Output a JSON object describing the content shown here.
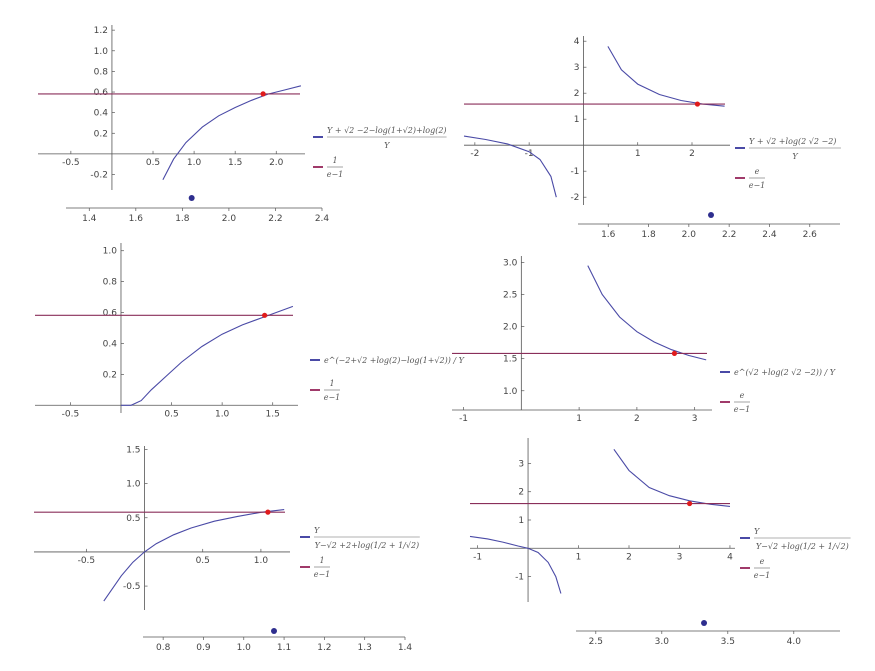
{
  "chart_data": [
    {
      "type": "line",
      "xlim": [
        -0.9,
        2.35
      ],
      "ylim": [
        -0.35,
        1.25
      ],
      "xticks": [
        "-0.5",
        "0.5",
        "1.0",
        "1.5",
        "2.0"
      ],
      "yticks": [
        "-0.2",
        "0.2",
        "0.4",
        "0.6",
        "0.8",
        "1.0",
        "1.2"
      ],
      "series": [
        {
          "kind": "curve",
          "x": [
            0.62,
            0.75,
            0.9,
            1.1,
            1.3,
            1.5,
            1.7,
            1.9,
            2.1,
            2.3
          ],
          "y": [
            -0.25,
            -0.05,
            0.11,
            0.26,
            0.37,
            0.45,
            0.52,
            0.58,
            0.62,
            0.66
          ]
        },
        {
          "kind": "hline",
          "y": 0.582
        }
      ],
      "intersection": {
        "x": 1.84,
        "y": 0.582
      },
      "legend": {
        "curve": "Y+√2 −2−log(1+√2)+log(2) / Y",
        "hline": "1 / e−1"
      },
      "secondary_axis": {
        "xlim": [
          1.3,
          2.4
        ],
        "ticks": [
          "1.4",
          "1.6",
          "1.8",
          "2.0",
          "2.2",
          "2.4"
        ],
        "dot": 1.84
      }
    },
    {
      "type": "line",
      "xlim": [
        -2.2,
        2.7
      ],
      "ylim": [
        -2.3,
        4.2
      ],
      "xticks": [
        "-2",
        "-1",
        "1",
        "2"
      ],
      "yticks": [
        "-2",
        "-1",
        "1",
        "2",
        "3",
        "4"
      ],
      "series": [
        {
          "kind": "curve",
          "x": [
            -2.2,
            -1.8,
            -1.4,
            -1.0,
            -0.8,
            -0.6,
            -0.5
          ],
          "y": [
            0.35,
            0.22,
            0.05,
            -0.25,
            -0.55,
            -1.2,
            -2.0
          ]
        },
        {
          "kind": "curve",
          "x": [
            0.45,
            0.7,
            1.0,
            1.4,
            1.8,
            2.2,
            2.6
          ],
          "y": [
            3.8,
            2.9,
            2.35,
            1.95,
            1.72,
            1.58,
            1.5
          ]
        },
        {
          "kind": "hline",
          "y": 1.582
        }
      ],
      "intersection": {
        "x": 2.1,
        "y": 1.582
      },
      "legend": {
        "curve": "Y+√2 +log(2 √2 −2) / Y",
        "hline": "e / e−1"
      },
      "secondary_axis": {
        "xlim": [
          1.45,
          2.75
        ],
        "ticks": [
          "1.6",
          "1.8",
          "2.0",
          "2.2",
          "2.4",
          "2.6"
        ],
        "dot": 2.11
      }
    },
    {
      "type": "line",
      "xlim": [
        -0.85,
        1.75
      ],
      "ylim": [
        -0.05,
        1.05
      ],
      "xticks": [
        "-0.5",
        "0.5",
        "1.0",
        "1.5"
      ],
      "yticks": [
        "0.2",
        "0.4",
        "0.6",
        "0.8",
        "1.0"
      ],
      "series": [
        {
          "kind": "curve",
          "x": [
            0.0,
            0.1,
            0.2,
            0.3,
            0.45,
            0.6,
            0.8,
            1.0,
            1.2,
            1.45,
            1.7
          ],
          "y": [
            0.0,
            0.0,
            0.03,
            0.1,
            0.19,
            0.28,
            0.38,
            0.46,
            0.52,
            0.58,
            0.64
          ]
        },
        {
          "kind": "hline",
          "y": 0.582
        }
      ],
      "intersection": {
        "x": 1.42,
        "y": 0.582
      },
      "legend": {
        "curve": "e^((−2+√2 +log(2)−log(1+√2)) / Y)",
        "hline": "1 / e−1"
      }
    },
    {
      "type": "line",
      "xlim": [
        -1.2,
        3.3
      ],
      "ylim": [
        0.7,
        3.1
      ],
      "xticks": [
        "-1",
        "1",
        "2",
        "3"
      ],
      "yticks": [
        "1.0",
        "1.5",
        "2.0",
        "2.5",
        "3.0"
      ],
      "series": [
        {
          "kind": "curve",
          "x": [
            1.15,
            1.4,
            1.7,
            2.0,
            2.3,
            2.6,
            2.9,
            3.2
          ],
          "y": [
            2.95,
            2.5,
            2.15,
            1.92,
            1.76,
            1.64,
            1.55,
            1.48
          ]
        },
        {
          "kind": "hline",
          "y": 1.582
        }
      ],
      "intersection": {
        "x": 2.65,
        "y": 1.582
      },
      "legend": {
        "curve": "e^((√2 +log(2 √2 −2)) / Y)",
        "hline": "e / e−1"
      }
    },
    {
      "type": "line",
      "xlim": [
        -0.95,
        1.25
      ],
      "ylim": [
        -0.85,
        1.55
      ],
      "xticks": [
        "-0.5",
        "0.5",
        "1.0"
      ],
      "yticks": [
        "-0.5",
        "0.5",
        "1.0",
        "1.5"
      ],
      "series": [
        {
          "kind": "curve",
          "x": [
            -0.35,
            -0.2,
            -0.1,
            0.0,
            0.1,
            0.25,
            0.4,
            0.6,
            0.8,
            1.0,
            1.2
          ],
          "y": [
            -0.72,
            -0.35,
            -0.15,
            0.0,
            0.12,
            0.25,
            0.35,
            0.45,
            0.52,
            0.58,
            0.62
          ]
        },
        {
          "kind": "hline",
          "y": 0.582
        }
      ],
      "intersection": {
        "x": 1.06,
        "y": 0.582
      },
      "legend": {
        "curve": "Y / Y−√2 +2+log(1/2+1/√2)",
        "hline": "1 / e−1"
      },
      "secondary_axis": {
        "xlim": [
          0.75,
          1.4
        ],
        "ticks": [
          "0.8",
          "0.9",
          "1.0",
          "1.1",
          "1.2",
          "1.3",
          "1.4"
        ],
        "dot": 1.075
      }
    },
    {
      "type": "line",
      "xlim": [
        -1.15,
        4.1
      ],
      "ylim": [
        -1.9,
        3.9
      ],
      "xticks": [
        "-1",
        "1",
        "2",
        "3",
        "4"
      ],
      "yticks": [
        "-1",
        "1",
        "2",
        "3"
      ],
      "series": [
        {
          "kind": "curve",
          "x": [
            -1.15,
            -0.8,
            -0.5,
            -0.2,
            0.0,
            0.2,
            0.4,
            0.55,
            0.65
          ],
          "y": [
            0.42,
            0.33,
            0.22,
            0.08,
            0.0,
            -0.15,
            -0.5,
            -1.0,
            -1.6
          ]
        },
        {
          "kind": "curve",
          "x": [
            1.7,
            2.0,
            2.4,
            2.8,
            3.2,
            3.6,
            4.0
          ],
          "y": [
            3.5,
            2.75,
            2.15,
            1.86,
            1.68,
            1.56,
            1.48
          ]
        },
        {
          "kind": "hline",
          "y": 1.582
        }
      ],
      "intersection": {
        "x": 3.2,
        "y": 1.582
      },
      "legend": {
        "curve": "Y / Y−√2 +log(1/2+1/√2)",
        "hline": "e / e−1"
      },
      "secondary_axis": {
        "xlim": [
          2.35,
          4.35
        ],
        "ticks": [
          "2.5",
          "3.0",
          "3.5",
          "4.0"
        ],
        "dot": 3.32
      }
    }
  ],
  "legends": [
    {
      "curve_num": "Y + √2 −2−log(1+√2)+log(2)",
      "curve_den": "Y",
      "h_num": "1",
      "h_den": "e−1"
    },
    {
      "curve_num": "Y + √2 +log(2 √2 −2)",
      "curve_den": "Y",
      "h_num": "e",
      "h_den": "e−1"
    },
    {
      "curve_text": "e^(−2+√2 +log(2)−log(1+√2)) / Y",
      "h_num": "1",
      "h_den": "e−1"
    },
    {
      "curve_text": "e^(√2 +log(2 √2 −2)) / Y",
      "h_num": "e",
      "h_den": "e−1"
    },
    {
      "curve_num": "Y",
      "curve_den": "Y−√2 +2+log(1/2 + 1/√2)",
      "h_num": "1",
      "h_den": "e−1"
    },
    {
      "curve_num": "Y",
      "curve_den": "Y−√2 +log(1/2 + 1/√2)",
      "h_num": "e",
      "h_den": "e−1"
    }
  ]
}
